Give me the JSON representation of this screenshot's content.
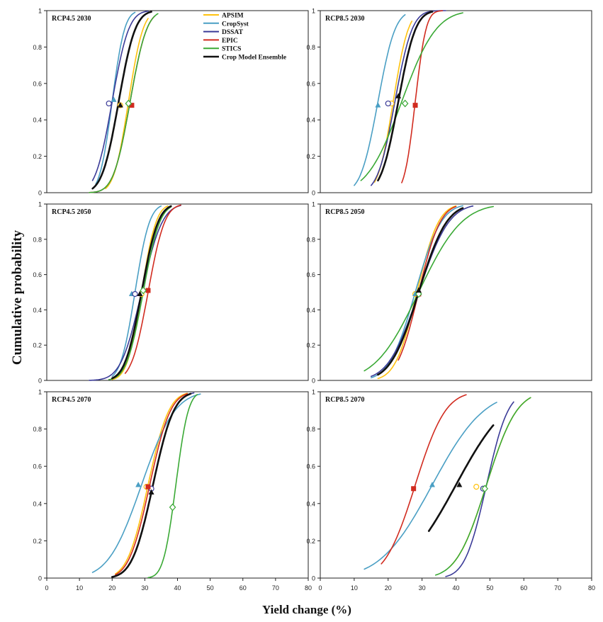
{
  "chart_data": {
    "type": "line",
    "xlabel": "Yield change (%)",
    "ylabel": "Cumulative probability",
    "xlim": [
      0,
      80
    ],
    "ylim": [
      0,
      1
    ],
    "x_ticks": [
      0,
      10,
      20,
      30,
      40,
      50,
      60,
      70,
      80
    ],
    "y_ticks": [
      0,
      0.2,
      0.4,
      0.6,
      0.8,
      1
    ],
    "legend": [
      {
        "name": "APSIM",
        "color": "#FFC20E"
      },
      {
        "name": "CropSyst",
        "color": "#4A9FC4"
      },
      {
        "name": "DSSAT",
        "color": "#3B3B98"
      },
      {
        "name": "EPIC",
        "color": "#D12B1F"
      },
      {
        "name": "STICS",
        "color": "#3AA935"
      },
      {
        "name": "Crop Model Ensemble",
        "color": "#111111"
      }
    ],
    "panels": [
      {
        "title": "RCP4.5 2030",
        "series": [
          {
            "name": "APSIM",
            "mean": 25,
            "sd": 3.5,
            "xmin": 18,
            "xmax": 31,
            "median": [
              22.5,
              0.48
            ],
            "marker": "circle"
          },
          {
            "name": "CropSyst",
            "mean": 20,
            "sd": 3.0,
            "xmin": 15,
            "xmax": 27,
            "median": [
              20.5,
              0.51
            ],
            "marker": "triangle"
          },
          {
            "name": "DSSAT",
            "mean": 20,
            "sd": 4.0,
            "xmin": 14,
            "xmax": 31,
            "median": [
              19.0,
              0.49
            ],
            "marker": "circle"
          },
          {
            "name": "EPIC",
            "mean": 25.5,
            "sd": 4.0,
            "xmin": 13,
            "xmax": 33,
            "median": [
              26.0,
              0.48
            ],
            "marker": "square"
          },
          {
            "name": "STICS",
            "mean": 25.5,
            "sd": 4.0,
            "xmin": 13,
            "xmax": 34,
            "median": [
              25.0,
              0.49
            ],
            "marker": "diamond"
          },
          {
            "name": "Crop Model Ensemble",
            "mean": 22,
            "sd": 4.0,
            "xmin": 14,
            "xmax": 32,
            "median": [
              22.5,
              0.48
            ],
            "marker": "triangle"
          }
        ]
      },
      {
        "title": "RCP8.5 2030",
        "series": [
          {
            "name": "APSIM",
            "mean": 21.5,
            "sd": 3.5,
            "xmin": 16,
            "xmax": 27,
            "median": [
              21.0,
              0.49
            ],
            "marker": "circle"
          },
          {
            "name": "CropSyst",
            "mean": 17,
            "sd": 4.0,
            "xmin": 10,
            "xmax": 25,
            "median": [
              17.0,
              0.48
            ],
            "marker": "triangle"
          },
          {
            "name": "DSSAT",
            "mean": 22,
            "sd": 4.0,
            "xmin": 15,
            "xmax": 37,
            "median": [
              20.0,
              0.49
            ],
            "marker": "circle"
          },
          {
            "name": "EPIC",
            "mean": 28,
            "sd": 2.5,
            "xmin": 24,
            "xmax": 36,
            "median": [
              28.0,
              0.48
            ],
            "marker": "square"
          },
          {
            "name": "STICS",
            "mean": 24,
            "sd": 8.0,
            "xmin": 12,
            "xmax": 42,
            "median": [
              25.0,
              0.49
            ],
            "marker": "diamond"
          },
          {
            "name": "Crop Model Ensemble",
            "mean": 23,
            "sd": 4.0,
            "xmin": 17,
            "xmax": 33,
            "median": [
              23.0,
              0.53
            ],
            "marker": "triangle"
          }
        ]
      },
      {
        "title": "RCP4.5 2050",
        "series": [
          {
            "name": "APSIM",
            "mean": 29,
            "sd": 3.5,
            "xmin": 20,
            "xmax": 37,
            "median": [
              29.0,
              0.49
            ],
            "marker": "circle"
          },
          {
            "name": "CropSyst",
            "mean": 27,
            "sd": 3.5,
            "xmin": 20,
            "xmax": 35,
            "median": [
              26.0,
              0.49
            ],
            "marker": "triangle"
          },
          {
            "name": "DSSAT",
            "mean": 29,
            "sd": 5.0,
            "xmin": 13,
            "xmax": 41,
            "median": [
              27.0,
              0.49
            ],
            "marker": "circle"
          },
          {
            "name": "EPIC",
            "mean": 31,
            "sd": 4.0,
            "xmin": 24,
            "xmax": 41,
            "median": [
              31.0,
              0.51
            ],
            "marker": "square"
          },
          {
            "name": "STICS",
            "mean": 29.5,
            "sd": 4.0,
            "xmin": 19,
            "xmax": 38,
            "median": [
              29.5,
              0.51
            ],
            "marker": "diamond"
          },
          {
            "name": "Crop Model Ensemble",
            "mean": 29,
            "sd": 4.0,
            "xmin": 20,
            "xmax": 38,
            "median": [
              28.5,
              0.49
            ],
            "marker": "triangle"
          }
        ]
      },
      {
        "title": "RCP8.5 2050",
        "series": [
          {
            "name": "APSIM",
            "mean": 28.5,
            "sd": 5.0,
            "xmin": 17,
            "xmax": 40,
            "median": [
              28.0,
              0.49
            ],
            "marker": "circle"
          },
          {
            "name": "CropSyst",
            "mean": 28,
            "sd": 6.0,
            "xmin": 15,
            "xmax": 42,
            "median": [
              28.0,
              0.49
            ],
            "marker": "triangle"
          },
          {
            "name": "DSSAT",
            "mean": 29,
            "sd": 7.0,
            "xmin": 15,
            "xmax": 45,
            "median": [
              29.0,
              0.49
            ],
            "marker": "circle"
          },
          {
            "name": "EPIC",
            "mean": 29,
            "sd": 5.0,
            "xmin": 23,
            "xmax": 40,
            "median": [
              29.0,
              0.49
            ],
            "marker": "square"
          },
          {
            "name": "STICS",
            "mean": 29,
            "sd": 10.0,
            "xmin": 13,
            "xmax": 51,
            "median": [
              29.0,
              0.49
            ],
            "marker": "diamond"
          },
          {
            "name": "Crop Model Ensemble",
            "mean": 29,
            "sd": 6.5,
            "xmin": 17,
            "xmax": 42,
            "median": [
              29.0,
              0.51
            ],
            "marker": "triangle"
          }
        ]
      },
      {
        "title": "RCP4.5 2070",
        "series": [
          {
            "name": "APSIM",
            "mean": 31,
            "sd": 5.0,
            "xmin": 21,
            "xmax": 43,
            "median": [
              30.5,
              0.49
            ],
            "marker": "circle"
          },
          {
            "name": "CropSyst",
            "mean": 29,
            "sd": 8.0,
            "xmin": 14,
            "xmax": 47,
            "median": [
              28.0,
              0.5
            ],
            "marker": "triangle"
          },
          {
            "name": "DSSAT",
            "mean": 32.5,
            "sd": 5.0,
            "xmin": 20,
            "xmax": 45,
            "median": [
              32.0,
              0.48
            ],
            "marker": "circle"
          },
          {
            "name": "EPIC",
            "mean": 31.5,
            "sd": 5.0,
            "xmin": 21,
            "xmax": 43,
            "median": [
              31.0,
              0.49
            ],
            "marker": "square"
          },
          {
            "name": "STICS",
            "mean": 39.5,
            "sd": 3.0,
            "xmin": 31,
            "xmax": 46,
            "median": [
              38.5,
              0.38
            ],
            "marker": "diamond"
          },
          {
            "name": "Crop Model Ensemble",
            "mean": 32.5,
            "sd": 5.0,
            "xmin": 20,
            "xmax": 44,
            "median": [
              32.0,
              0.46
            ],
            "marker": "triangle"
          }
        ]
      },
      {
        "title": "RCP8.5 2070",
        "series": [
          {
            "name": "APSIM",
            "mean": 49,
            "sd": 7.0,
            "xmin": 38,
            "xmax": 62,
            "median": [
              46.0,
              0.49
            ],
            "marker": "circle"
          },
          {
            "name": "CropSyst",
            "mean": 33,
            "sd": 12.0,
            "xmin": 13,
            "xmax": 52,
            "median": [
              33.0,
              0.5
            ],
            "marker": "triangle"
          },
          {
            "name": "DSSAT",
            "mean": 49,
            "sd": 5.0,
            "xmin": 37,
            "xmax": 57,
            "median": [
              48.0,
              0.48
            ],
            "marker": "circle"
          },
          {
            "name": "EPIC",
            "mean": 28,
            "sd": 7.0,
            "xmin": 18,
            "xmax": 43,
            "median": [
              27.5,
              0.48
            ],
            "marker": "square"
          },
          {
            "name": "STICS",
            "mean": 49,
            "sd": 7.0,
            "xmin": 34,
            "xmax": 62,
            "median": [
              48.5,
              0.48
            ],
            "marker": "diamond"
          },
          {
            "name": "Crop Model Ensemble",
            "mean": 40,
            "sd": 12.0,
            "xmin": 32,
            "xmax": 51,
            "median": [
              41.0,
              0.5
            ],
            "marker": "triangle"
          }
        ]
      }
    ]
  }
}
